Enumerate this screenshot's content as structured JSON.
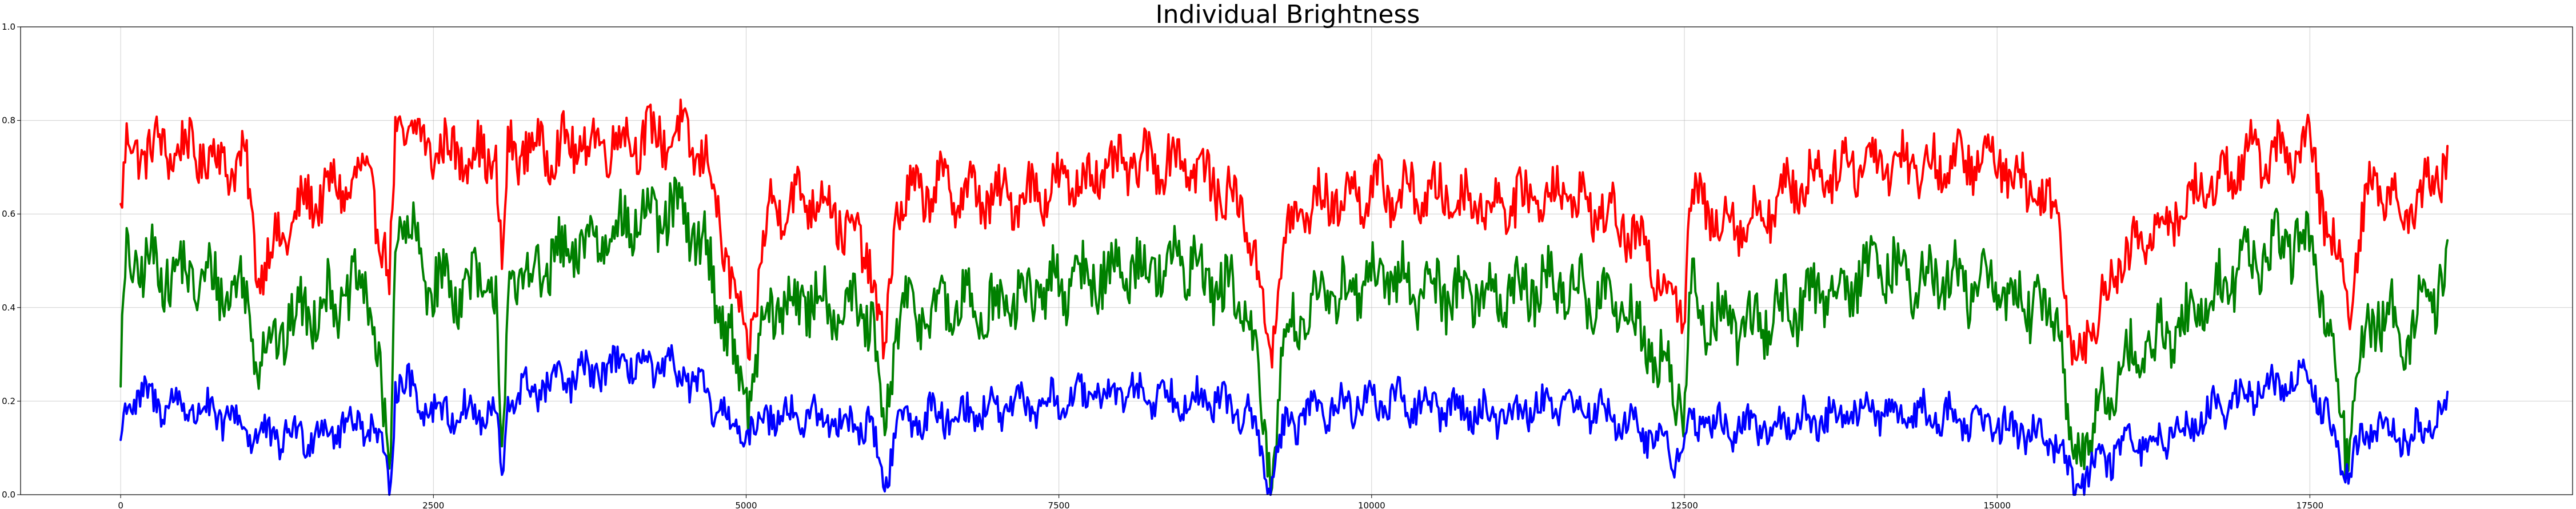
{
  "chart_data": {
    "type": "line",
    "title": "Individual Brightness",
    "xlabel": "",
    "ylabel": "",
    "xlim": [
      -800,
      19600
    ],
    "ylim": [
      0.0,
      1.0
    ],
    "xticks": [
      0,
      2500,
      5000,
      7500,
      10000,
      12500,
      15000,
      17500
    ],
    "xtick_labels": [
      "0",
      "2500",
      "5000",
      "7500",
      "10000",
      "12500",
      "15000",
      "17500"
    ],
    "yticks": [
      0.0,
      0.2,
      0.4,
      0.6,
      0.8,
      1.0
    ],
    "ytick_labels": [
      "0.0",
      "0.2",
      "0.4",
      "0.6",
      "0.8",
      "1.0"
    ],
    "grid": true,
    "legend": "none",
    "series": [
      {
        "color": "#ff0000",
        "x": [
          0,
          50,
          500,
          1000,
          1100,
          1500,
          2000,
          2150,
          2200,
          2500,
          3000,
          3050,
          3100,
          3500,
          4000,
          4500,
          4700,
          5000,
          5200,
          5600,
          6000,
          6100,
          6200,
          6500,
          7000,
          7500,
          8000,
          8500,
          9000,
          9200,
          9300,
          9500,
          10000,
          10500,
          11000,
          11500,
          12000,
          12500,
          12550,
          12700,
          13000,
          13500,
          14000,
          14500,
          15000,
          15500,
          15600,
          16000,
          16500,
          17000,
          17500,
          17800,
          18000,
          18300,
          18600
        ],
        "values": [
          0.6,
          0.74,
          0.74,
          0.7,
          0.48,
          0.63,
          0.68,
          0.44,
          0.79,
          0.74,
          0.72,
          0.46,
          0.74,
          0.74,
          0.76,
          0.77,
          0.7,
          0.3,
          0.62,
          0.64,
          0.5,
          0.28,
          0.62,
          0.66,
          0.63,
          0.66,
          0.7,
          0.72,
          0.6,
          0.3,
          0.55,
          0.62,
          0.65,
          0.64,
          0.62,
          0.65,
          0.58,
          0.4,
          0.64,
          0.6,
          0.58,
          0.68,
          0.72,
          0.7,
          0.72,
          0.6,
          0.28,
          0.5,
          0.62,
          0.72,
          0.74,
          0.4,
          0.68,
          0.6,
          0.72
        ]
      },
      {
        "color": "#008000",
        "x": [
          0,
          50,
          500,
          1000,
          1100,
          1500,
          2000,
          2150,
          2200,
          2500,
          3000,
          3050,
          3100,
          3500,
          4000,
          4500,
          4700,
          5000,
          5200,
          5600,
          6000,
          6100,
          6200,
          6500,
          7000,
          7500,
          8000,
          8500,
          9000,
          9200,
          9300,
          9500,
          10000,
          10500,
          11000,
          11500,
          12000,
          12500,
          12550,
          12700,
          13000,
          13500,
          14000,
          14500,
          15000,
          15500,
          15600,
          16000,
          16500,
          17000,
          17500,
          17800,
          18000,
          18300,
          18600
        ],
        "values": [
          0.25,
          0.5,
          0.47,
          0.43,
          0.3,
          0.4,
          0.44,
          0.02,
          0.6,
          0.45,
          0.44,
          0.05,
          0.45,
          0.5,
          0.58,
          0.6,
          0.5,
          0.2,
          0.4,
          0.42,
          0.38,
          0.1,
          0.38,
          0.4,
          0.4,
          0.45,
          0.48,
          0.5,
          0.4,
          0.03,
          0.35,
          0.4,
          0.46,
          0.44,
          0.43,
          0.45,
          0.4,
          0.2,
          0.42,
          0.38,
          0.36,
          0.42,
          0.48,
          0.46,
          0.44,
          0.38,
          0.05,
          0.28,
          0.36,
          0.5,
          0.55,
          0.1,
          0.4,
          0.35,
          0.48
        ]
      },
      {
        "color": "#0000ff",
        "x": [
          0,
          50,
          500,
          1000,
          1100,
          1500,
          2000,
          2150,
          2200,
          2500,
          3000,
          3050,
          3100,
          3500,
          4000,
          4500,
          4700,
          5000,
          5200,
          5600,
          6000,
          6100,
          6200,
          6500,
          7000,
          7500,
          8000,
          8500,
          9000,
          9200,
          9300,
          9500,
          10000,
          10500,
          11000,
          11500,
          12000,
          12500,
          12550,
          12700,
          13000,
          13500,
          14000,
          14500,
          15000,
          15500,
          15600,
          16000,
          16500,
          17000,
          17500,
          17800,
          18000,
          18300,
          18600
        ],
        "values": [
          0.1,
          0.21,
          0.19,
          0.15,
          0.12,
          0.13,
          0.16,
          0.02,
          0.25,
          0.18,
          0.17,
          0.02,
          0.21,
          0.24,
          0.28,
          0.26,
          0.2,
          0.12,
          0.18,
          0.16,
          0.15,
          0.01,
          0.15,
          0.17,
          0.18,
          0.2,
          0.22,
          0.21,
          0.18,
          0.02,
          0.14,
          0.18,
          0.2,
          0.19,
          0.17,
          0.2,
          0.16,
          0.08,
          0.16,
          0.15,
          0.14,
          0.16,
          0.18,
          0.17,
          0.15,
          0.12,
          0.02,
          0.1,
          0.14,
          0.22,
          0.25,
          0.05,
          0.16,
          0.12,
          0.18
        ]
      }
    ]
  }
}
